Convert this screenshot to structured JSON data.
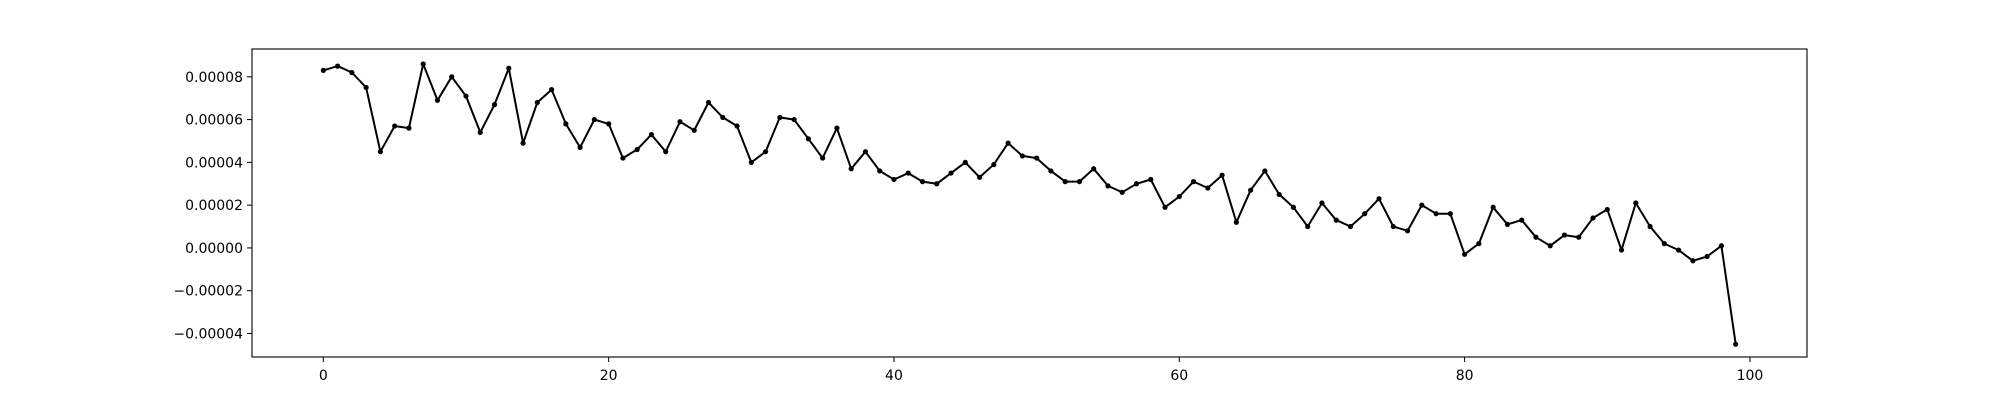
{
  "chart_data": {
    "type": "line",
    "title": "",
    "xlabel": "",
    "ylabel": "",
    "xlim": [
      -5,
      104
    ],
    "ylim": [
      -5.1e-05,
      9.3e-05
    ],
    "grid": false,
    "legend": "none",
    "xticks": [
      0,
      20,
      40,
      60,
      80,
      100
    ],
    "xtick_labels": [
      "0",
      "20",
      "40",
      "60",
      "80",
      "100"
    ],
    "yticks": [
      -4e-05,
      -2e-05,
      0.0,
      2e-05,
      4e-05,
      6e-05,
      8e-05
    ],
    "ytick_labels": [
      "−0.00004",
      "−0.00002",
      "0.00000",
      "0.00002",
      "0.00004",
      "0.00006",
      "0.00008"
    ],
    "line_color": "#000000",
    "series": [
      {
        "x": [
          0,
          1,
          2,
          3,
          4,
          5,
          6,
          7,
          8,
          9,
          10,
          11,
          12,
          13,
          14,
          15,
          16,
          17,
          18,
          19,
          20,
          21,
          22,
          23,
          24,
          25,
          26,
          27,
          28,
          29,
          30,
          31,
          32,
          33,
          34,
          35,
          36,
          37,
          38,
          39,
          40,
          41,
          42,
          43,
          44,
          45,
          46,
          47,
          48,
          49,
          50,
          51,
          52,
          53,
          54,
          55,
          56,
          57,
          58,
          59,
          60,
          61,
          62,
          63,
          64,
          65,
          66,
          67,
          68,
          69,
          70,
          71,
          72,
          73,
          74,
          75,
          76,
          77,
          78,
          79,
          80,
          81,
          82,
          83,
          84,
          85,
          86,
          87,
          88,
          89,
          90,
          91,
          92,
          93,
          94,
          95,
          96,
          97,
          98,
          99
        ],
        "values": [
          8.3e-05,
          8.5e-05,
          8.2e-05,
          7.5e-05,
          4.5e-05,
          5.7e-05,
          5.6e-05,
          8.6e-05,
          6.9e-05,
          8e-05,
          7.1e-05,
          5.4e-05,
          6.7e-05,
          8.4e-05,
          4.9e-05,
          6.8e-05,
          7.4e-05,
          5.8e-05,
          4.7e-05,
          6e-05,
          5.8e-05,
          4.2e-05,
          4.6e-05,
          5.3e-05,
          4.5e-05,
          5.9e-05,
          5.5e-05,
          6.8e-05,
          6.1e-05,
          5.7e-05,
          4e-05,
          4.5e-05,
          6.1e-05,
          6e-05,
          5.1e-05,
          4.2e-05,
          5.6e-05,
          3.7e-05,
          4.5e-05,
          3.6e-05,
          3.2e-05,
          3.5e-05,
          3.1e-05,
          3e-05,
          3.5e-05,
          4e-05,
          3.3e-05,
          3.9e-05,
          4.9e-05,
          4.3e-05,
          4.2e-05,
          3.6e-05,
          3.1e-05,
          3.1e-05,
          3.7e-05,
          2.9e-05,
          2.6e-05,
          3e-05,
          3.2e-05,
          1.9e-05,
          2.4e-05,
          3.1e-05,
          2.8e-05,
          3.4e-05,
          1.2e-05,
          2.7e-05,
          3.6e-05,
          2.5e-05,
          1.9e-05,
          1e-05,
          2.1e-05,
          1.3e-05,
          1e-05,
          1.6e-05,
          2.3e-05,
          1e-05,
          8e-06,
          2e-05,
          1.6e-05,
          1.6e-05,
          -3e-06,
          2e-06,
          1.9e-05,
          1.1e-05,
          1.3e-05,
          5e-06,
          1e-06,
          6e-06,
          5e-06,
          1.4e-05,
          1.8e-05,
          -1e-06,
          2.1e-05,
          1e-05,
          2e-06,
          -1e-06,
          -6e-06,
          -4e-06,
          1e-06,
          -4.5e-05
        ]
      }
    ]
  }
}
